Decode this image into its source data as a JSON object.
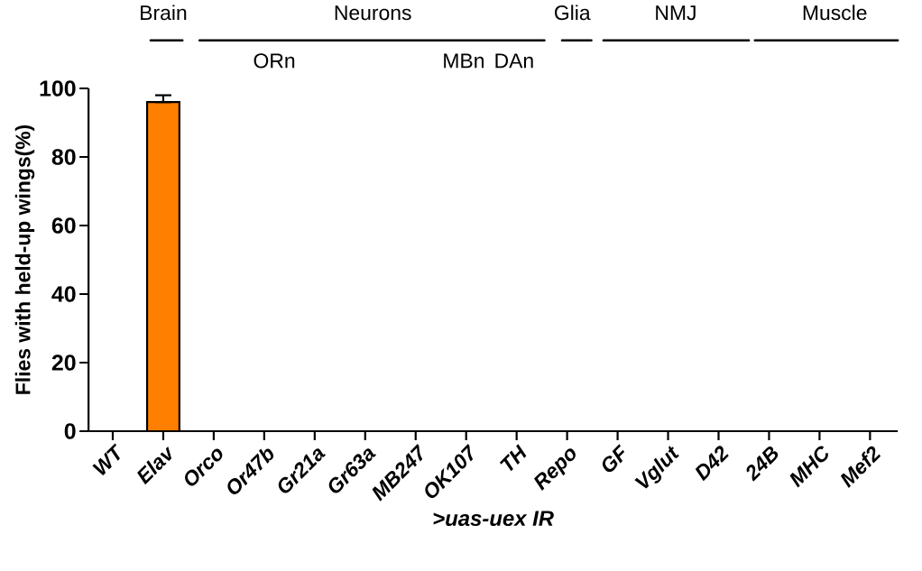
{
  "chart_data": {
    "type": "bar",
    "categories": [
      "WT",
      "Elav",
      "Orco",
      "Or47b",
      "Gr21a",
      "Gr63a",
      "MB247",
      "OK107",
      "TH",
      "Repo",
      "GF",
      "Vglut",
      "D42",
      "24B",
      "MHC",
      "Mef2"
    ],
    "values": [
      0,
      96,
      0,
      0,
      0,
      0,
      0,
      0,
      0,
      0,
      0,
      0,
      0,
      0,
      0,
      0
    ],
    "colors": [
      "#ffffff",
      "#ff7f00",
      "#ffffff",
      "#ffffff",
      "#ffffff",
      "#ffffff",
      "#ffffff",
      "#ffffff",
      "#ffffff",
      "#ffffff",
      "#ffffff",
      "#ffffff",
      "#ffffff",
      "#ffffff",
      "#ffffff",
      "#ffffff"
    ],
    "errors": [
      null,
      [
        96,
        98
      ],
      null,
      null,
      null,
      null,
      null,
      null,
      null,
      null,
      null,
      null,
      null,
      null,
      null,
      null
    ],
    "xlabel": ">uas-uex IR",
    "ylabel": "Flies with held-up wings(%)",
    "ylim": [
      0,
      100
    ],
    "yticks": [
      0,
      20,
      40,
      60,
      80,
      100
    ],
    "grid": false,
    "annotations": [
      "Brain",
      "Neurons",
      "ORn",
      "MBn",
      "DAn",
      "Glia",
      "NMJ",
      "Muscle"
    ]
  }
}
